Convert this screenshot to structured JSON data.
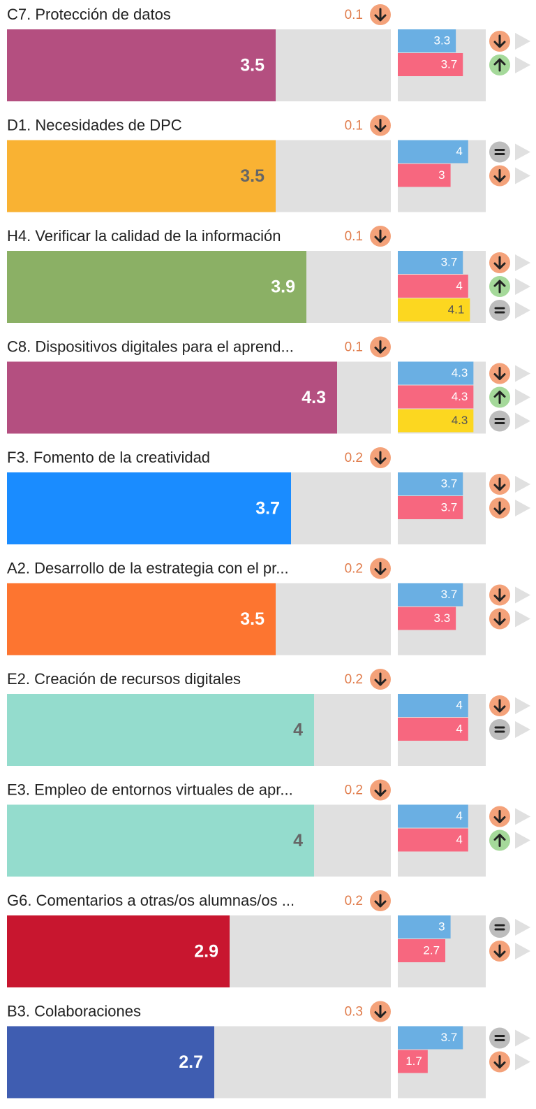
{
  "max": 5,
  "items": [
    {
      "label": "C7. Protección de datos",
      "delta": 0.1,
      "value": 3.5,
      "color": "#b44f80",
      "text_color": "#ffffff",
      "sub": [
        {
          "value": 3.3,
          "color": "#6aafe3",
          "trend": "down"
        },
        {
          "value": 3.7,
          "color": "#f7677f",
          "trend": "up"
        }
      ]
    },
    {
      "label": "D1. Necesidades de DPC",
      "delta": 0.1,
      "value": 3.5,
      "color": "#f9b233",
      "text_color": "#666666",
      "sub": [
        {
          "value": 4,
          "color": "#6aafe3",
          "trend": "equal"
        },
        {
          "value": 3,
          "color": "#f7677f",
          "trend": "down"
        }
      ]
    },
    {
      "label": "H4. Verificar la calidad de la información",
      "delta": 0.1,
      "value": 3.9,
      "color": "#8bb065",
      "text_color": "#ffffff",
      "sub": [
        {
          "value": 3.7,
          "color": "#6aafe3",
          "trend": "down"
        },
        {
          "value": 4,
          "color": "#f7677f",
          "trend": "up"
        },
        {
          "value": 4.1,
          "color": "#fcd720",
          "trend": "equal"
        }
      ]
    },
    {
      "label": "C8. Dispositivos digitales para el aprend...",
      "delta": 0.1,
      "value": 4.3,
      "color": "#b44f80",
      "text_color": "#ffffff",
      "sub": [
        {
          "value": 4.3,
          "color": "#6aafe3",
          "trend": "down"
        },
        {
          "value": 4.3,
          "color": "#f7677f",
          "trend": "up"
        },
        {
          "value": 4.3,
          "color": "#fcd720",
          "trend": "equal"
        }
      ]
    },
    {
      "label": "F3. Fomento de la creatividad",
      "delta": 0.2,
      "value": 3.7,
      "color": "#1a8cff",
      "text_color": "#ffffff",
      "sub": [
        {
          "value": 3.7,
          "color": "#6aafe3",
          "trend": "down"
        },
        {
          "value": 3.7,
          "color": "#f7677f",
          "trend": "down"
        }
      ]
    },
    {
      "label": "A2. Desarrollo de la estrategia con el pr...",
      "delta": 0.2,
      "value": 3.5,
      "color": "#fd7530",
      "text_color": "#ffffff",
      "sub": [
        {
          "value": 3.7,
          "color": "#6aafe3",
          "trend": "down"
        },
        {
          "value": 3.3,
          "color": "#f7677f",
          "trend": "down"
        }
      ]
    },
    {
      "label": "E2. Creación de recursos digitales",
      "delta": 0.2,
      "value": 4,
      "color": "#94dccd",
      "text_color": "#666666",
      "sub": [
        {
          "value": 4,
          "color": "#6aafe3",
          "trend": "down"
        },
        {
          "value": 4,
          "color": "#f7677f",
          "trend": "equal"
        }
      ]
    },
    {
      "label": "E3. Empleo de entornos virtuales de apr...",
      "delta": 0.2,
      "value": 4,
      "color": "#94dccd",
      "text_color": "#666666",
      "sub": [
        {
          "value": 4,
          "color": "#6aafe3",
          "trend": "down"
        },
        {
          "value": 4,
          "color": "#f7677f",
          "trend": "up"
        }
      ]
    },
    {
      "label": "G6. Comentarios a otras/os alumnas/os ...",
      "delta": 0.2,
      "value": 2.9,
      "color": "#c8162f",
      "text_color": "#ffffff",
      "sub": [
        {
          "value": 3,
          "color": "#6aafe3",
          "trend": "equal"
        },
        {
          "value": 2.7,
          "color": "#f7677f",
          "trend": "down"
        }
      ]
    },
    {
      "label": "B3. Colaboraciones",
      "delta": 0.3,
      "value": 2.7,
      "color": "#3f5db1",
      "text_color": "#ffffff",
      "sub": [
        {
          "value": 3.7,
          "color": "#6aafe3",
          "trend": "equal"
        },
        {
          "value": 1.7,
          "color": "#f7677f",
          "trend": "down"
        }
      ]
    }
  ]
}
